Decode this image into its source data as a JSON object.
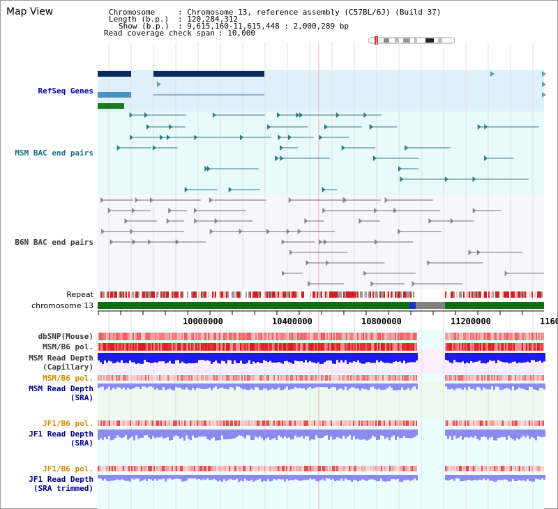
{
  "page": {
    "title": "Map View"
  },
  "header": {
    "chromosome_label": "Chromosome",
    "chromosome_value": ": Chromosome 13, reference assembly (C57BL/6J) (Build 37)",
    "length_label": "Length (b.p.)",
    "length_value": ": 120,284,312",
    "show_label": "Show (b.p.)",
    "show_value": ": 9,615,160-11,615,448 : 2,000,289 bp",
    "coverage_label": "Read coverage check span",
    "coverage_value": ": 10,000"
  },
  "tracks": {
    "refseq": "RefSeq Genes",
    "msm_bac": "MSM BAC end pairs",
    "b6n_bac": "B6N BAC end pairs",
    "repeat": "Repeat",
    "chromosome": "chromosome 13",
    "dbsnp": "dbSNP(Mouse)",
    "msm_b6_pol_1": "MSM/B6 pol.",
    "msm_read_depth_cap_1": "MSM Read Depth",
    "msm_read_depth_cap_2": "(Capillary)",
    "msm_b6_pol_2": "MSM/B6 pol.",
    "msm_read_depth_sra_1": "MSM Read Depth",
    "msm_read_depth_sra_2": "(SRA)",
    "jf1_b6_pol_1": "JF1/B6 pol.",
    "jf1_read_depth_sra_1": "JF1 Read Depth",
    "jf1_read_depth_sra_2": "(SRA)",
    "jf1_b6_pol_2": "JF1/B6 pol.",
    "jf1_read_depth_trim_1": "JF1 Read Depth",
    "jf1_read_depth_trim_2": "(SRA trimmed)"
  },
  "axis": {
    "ticks": [
      "10000000",
      "10400000",
      "10800000",
      "11200000",
      "1160"
    ]
  },
  "colors": {
    "refseq_bg": "#dff0fb",
    "msm_bac_bg": "#e8fafa",
    "b6n_bac_bg": "#f6f6fb",
    "gene_dark": "#0a2a5e",
    "gene_mid": "#4a90c0",
    "gene_green": "#1a7a1a",
    "msm_bac": "#2a7a8a",
    "b6n_bac": "#707070",
    "chromosome_bar": "#0f6e0f",
    "repeat_red": "#d42020",
    "snp_red": "#f08080",
    "depth_blue": "#1c1ce0",
    "depth_light": "#8a8af0",
    "label_teal": "#1a6f7e",
    "label_navy": "#00008b",
    "label_orange": "#d08a00",
    "label_gray": "#3a3a3a",
    "label_refseq": "#0000aa"
  }
}
